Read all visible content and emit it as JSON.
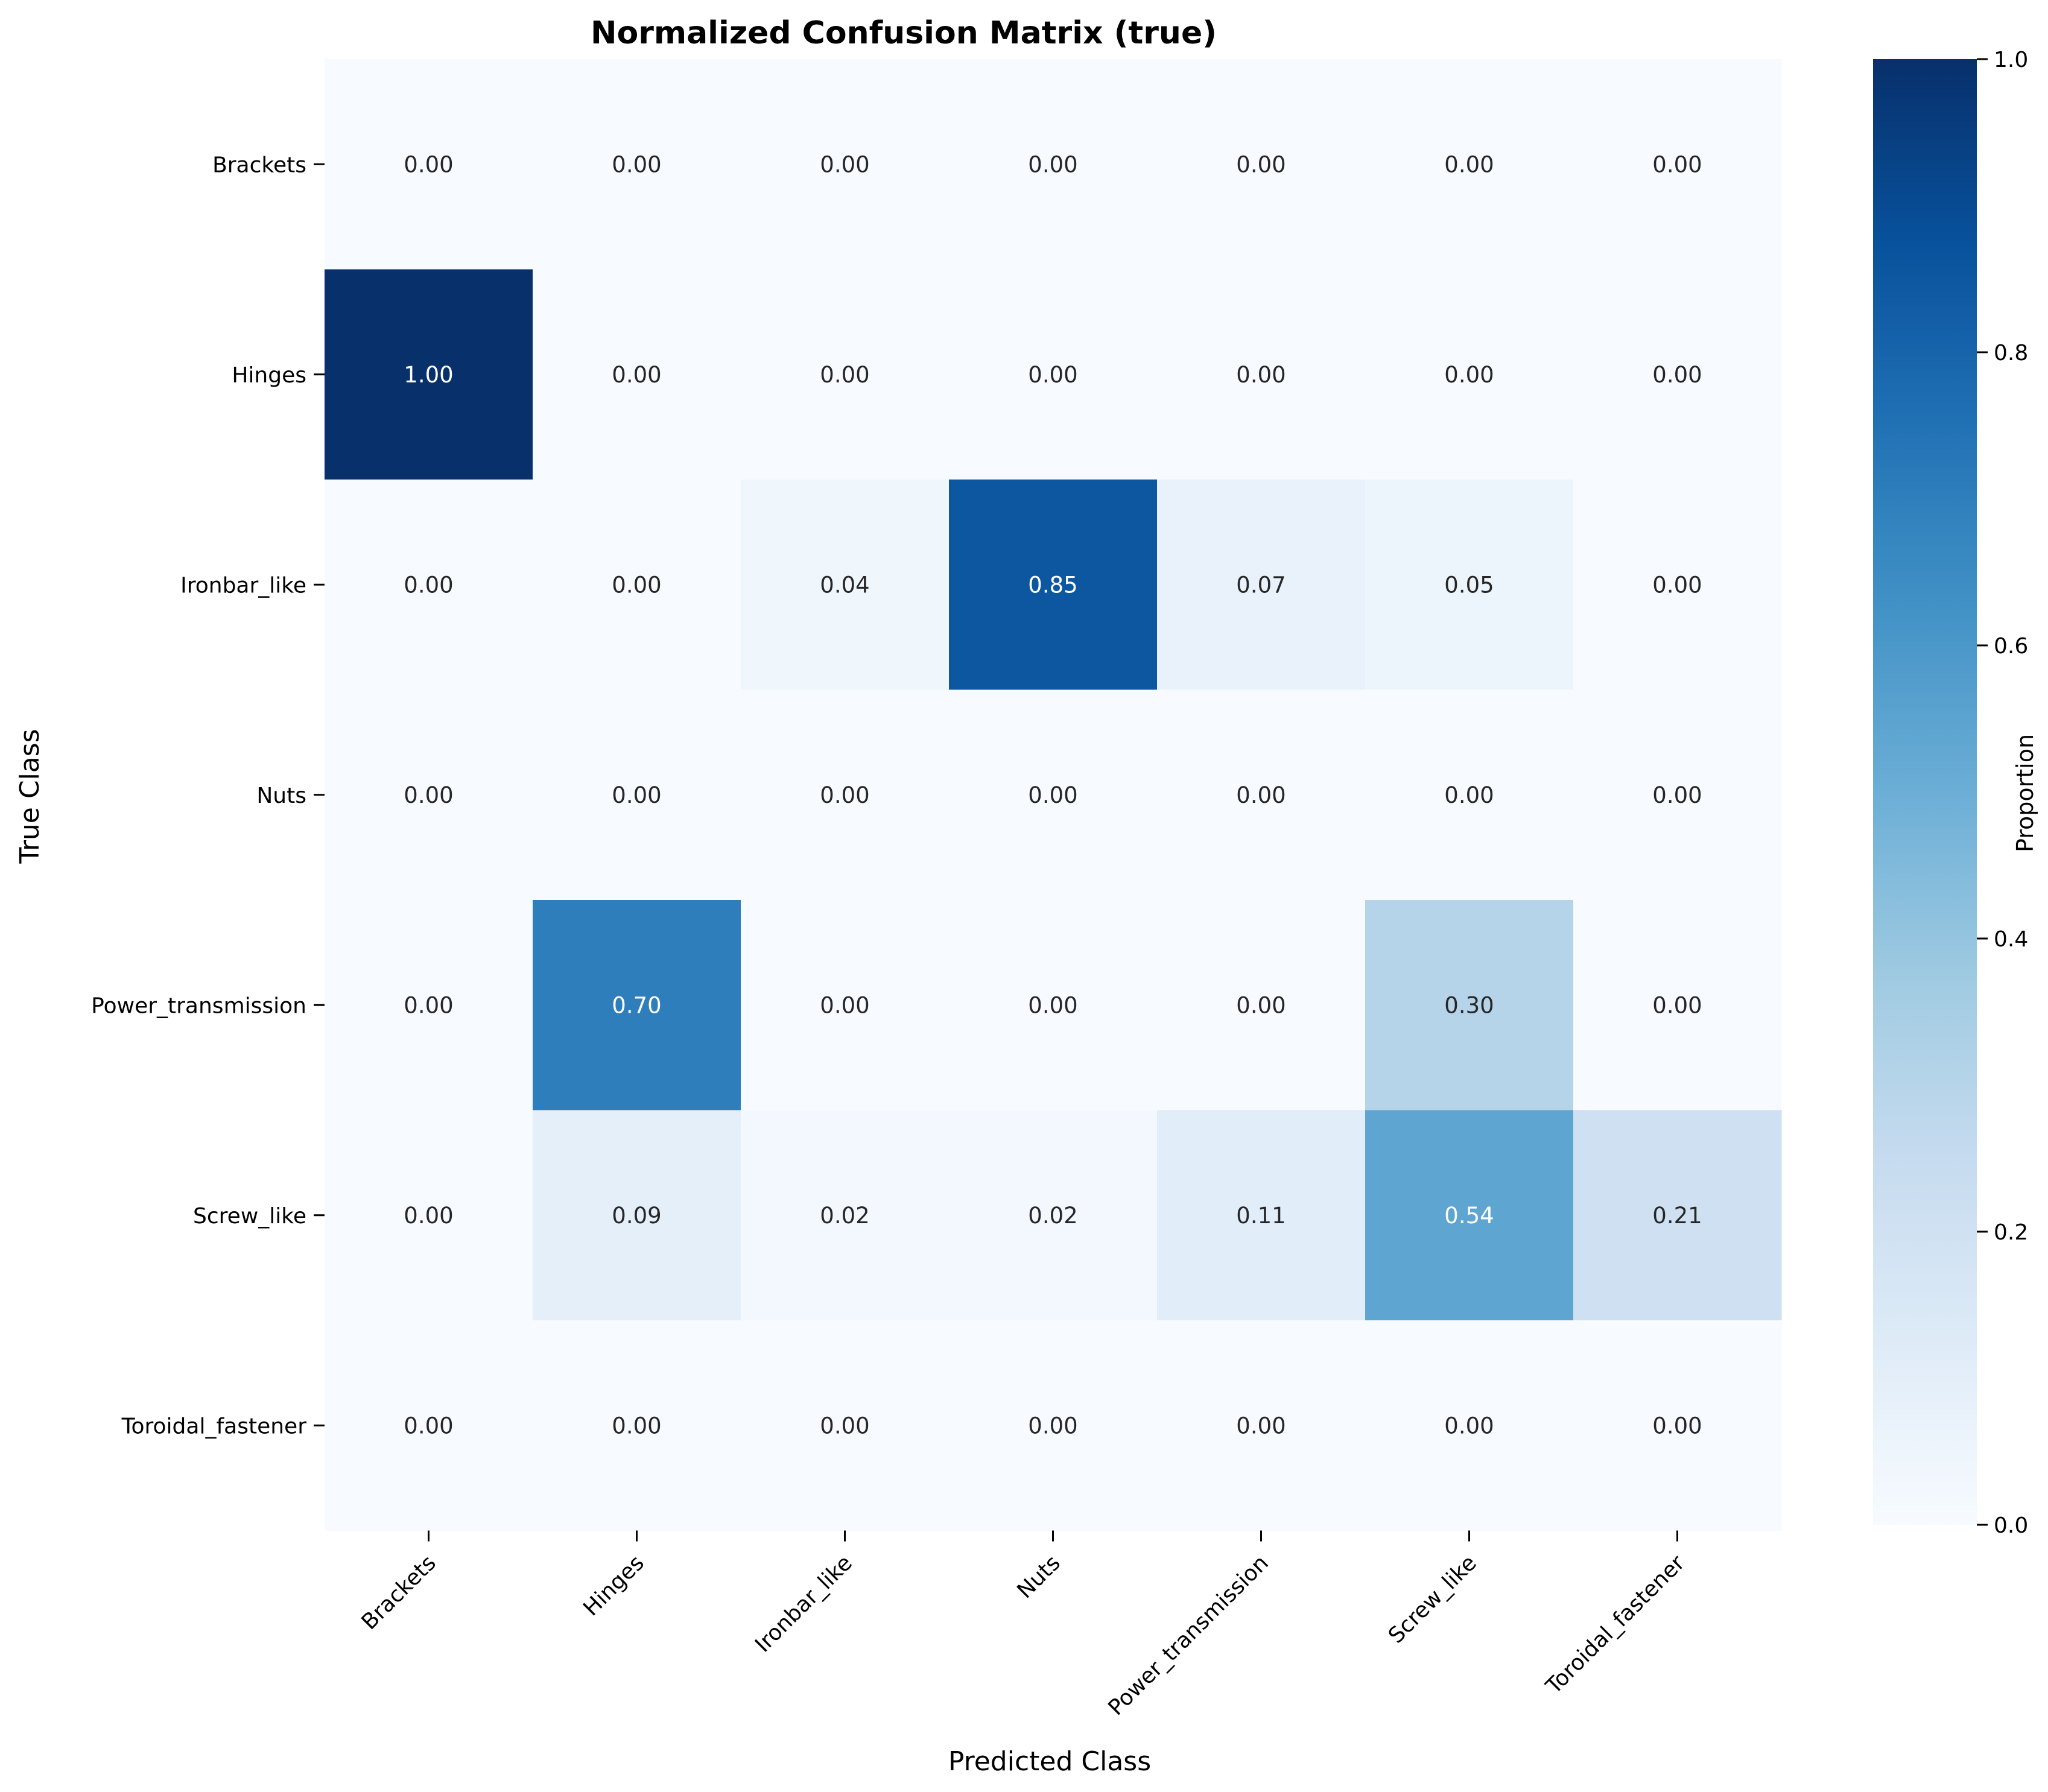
{
  "chart_data": {
    "type": "heatmap",
    "title": "Normalized Confusion Matrix (true)",
    "xlabel": "Predicted Class",
    "ylabel": "True Class",
    "x_categories": [
      "Brackets",
      "Hinges",
      "Ironbar_like",
      "Nuts",
      "Power_transmission",
      "Screw_like",
      "Toroidal_fastener"
    ],
    "y_categories": [
      "Brackets",
      "Hinges",
      "Ironbar_like",
      "Nuts",
      "Power_transmission",
      "Screw_like",
      "Toroidal_fastener"
    ],
    "values": [
      [
        0.0,
        0.0,
        0.0,
        0.0,
        0.0,
        0.0,
        0.0
      ],
      [
        1.0,
        0.0,
        0.0,
        0.0,
        0.0,
        0.0,
        0.0
      ],
      [
        0.0,
        0.0,
        0.04,
        0.85,
        0.07,
        0.05,
        0.0
      ],
      [
        0.0,
        0.0,
        0.0,
        0.0,
        0.0,
        0.0,
        0.0
      ],
      [
        0.0,
        0.7,
        0.0,
        0.0,
        0.0,
        0.3,
        0.0
      ],
      [
        0.0,
        0.09,
        0.02,
        0.02,
        0.11,
        0.54,
        0.21
      ],
      [
        0.0,
        0.0,
        0.0,
        0.0,
        0.0,
        0.0,
        0.0
      ]
    ],
    "value_format": "0.00",
    "colormap": "Blues",
    "colorbar": {
      "label": "Proportion",
      "range": [
        0.0,
        1.0
      ],
      "ticks": [
        "0.0",
        "0.2",
        "0.4",
        "0.6",
        "0.8",
        "1.0"
      ]
    }
  }
}
